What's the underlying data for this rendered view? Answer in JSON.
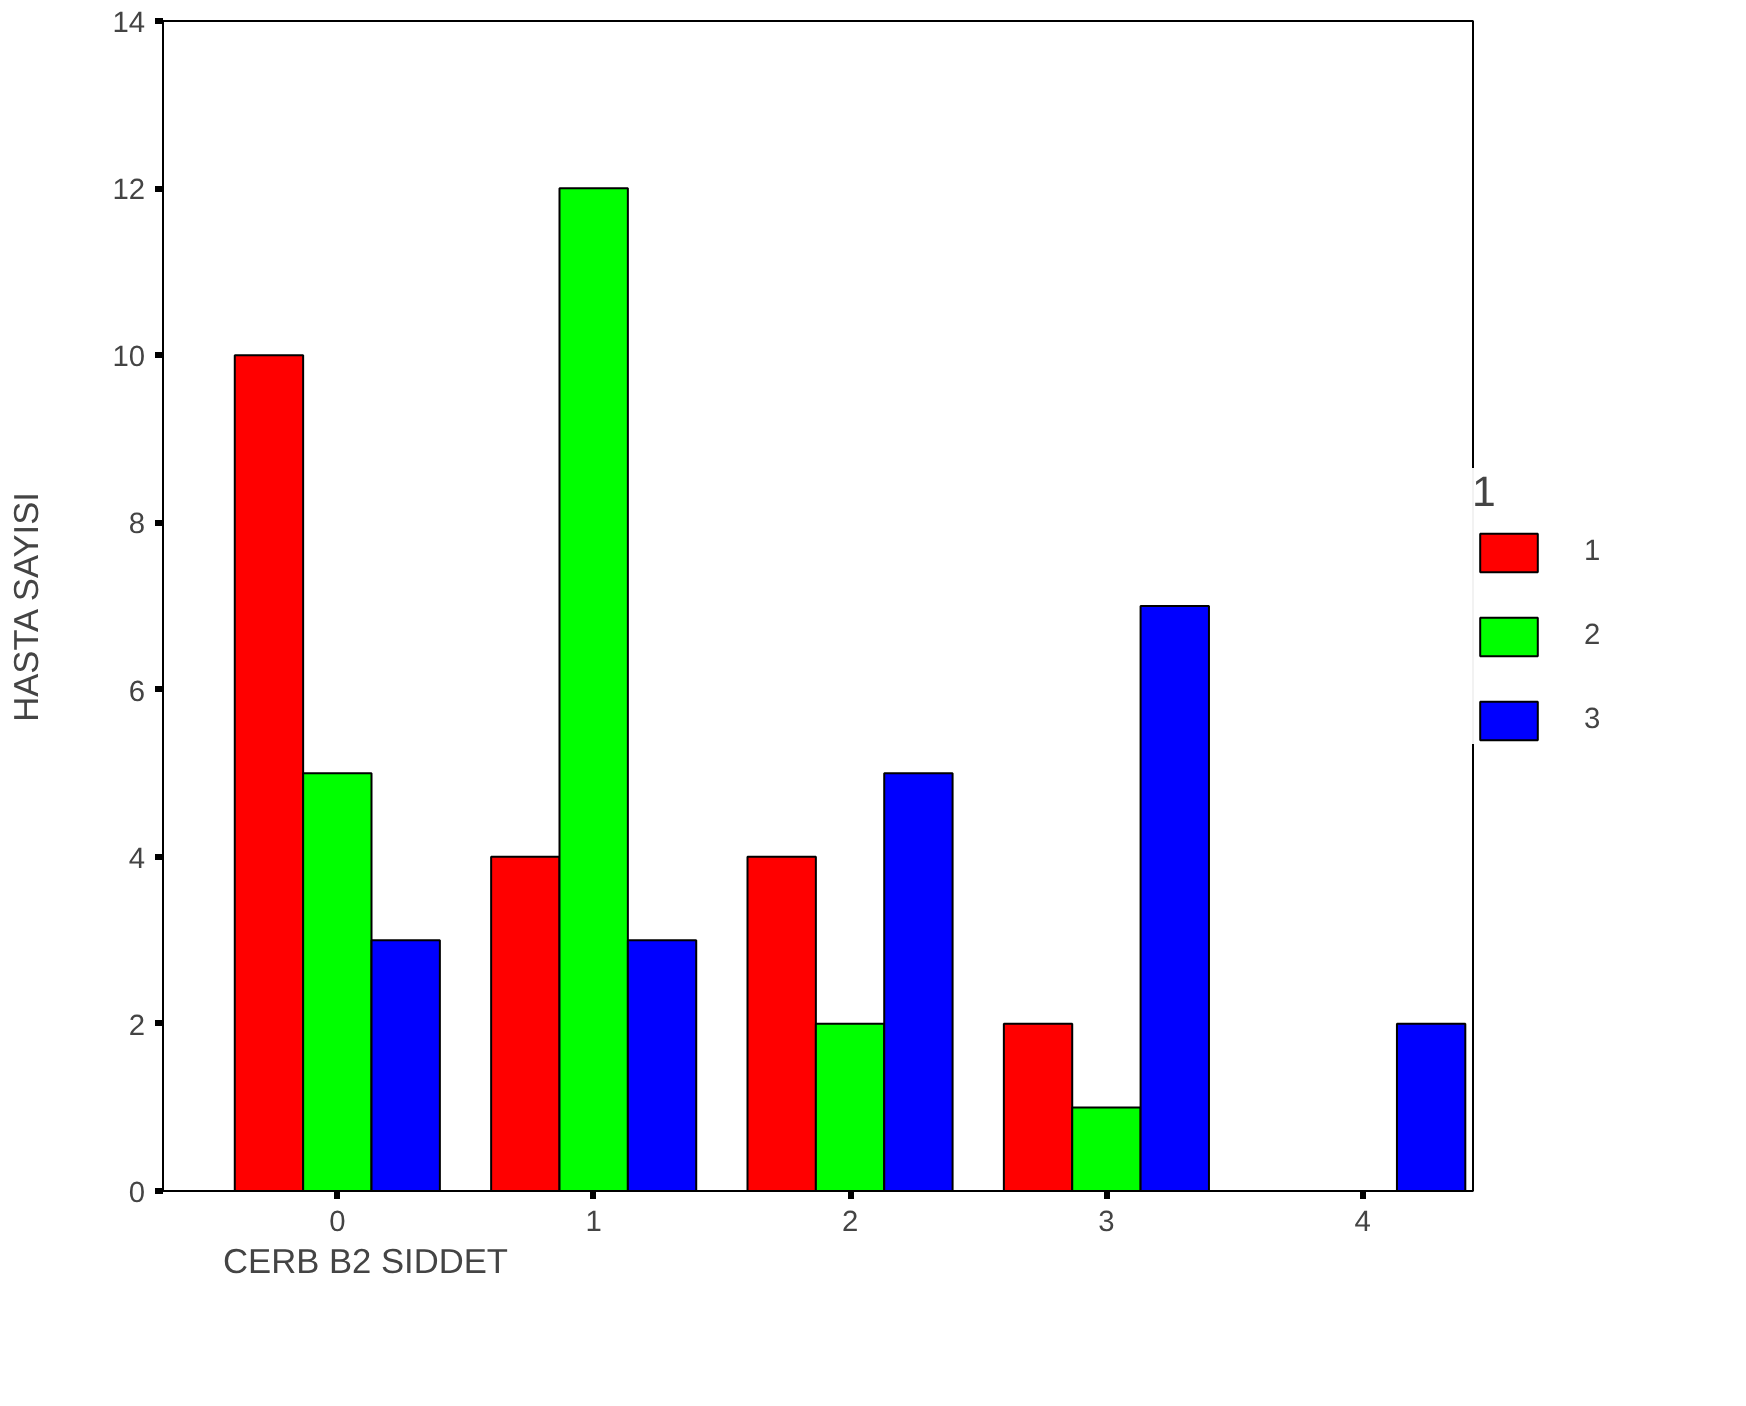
{
  "chart_data": {
    "type": "bar",
    "xlabel": "CERB B2 SIDDET",
    "ylabel": "HASTA SAYISI",
    "legend_title": "1",
    "categories": [
      "0",
      "1",
      "2",
      "3",
      "4"
    ],
    "series": [
      {
        "name": "1",
        "color": "#ff0000",
        "values": [
          10,
          4,
          4,
          2,
          0
        ]
      },
      {
        "name": "2",
        "color": "#00ff00",
        "values": [
          5,
          12,
          2,
          1,
          0
        ]
      },
      {
        "name": "3",
        "color": "#0000ff",
        "values": [
          3,
          3,
          5,
          7,
          2
        ]
      }
    ],
    "ylim": [
      0,
      14
    ],
    "yticks": [
      0,
      2,
      4,
      6,
      8,
      10,
      12,
      14
    ],
    "grid": false,
    "legend": "right"
  }
}
